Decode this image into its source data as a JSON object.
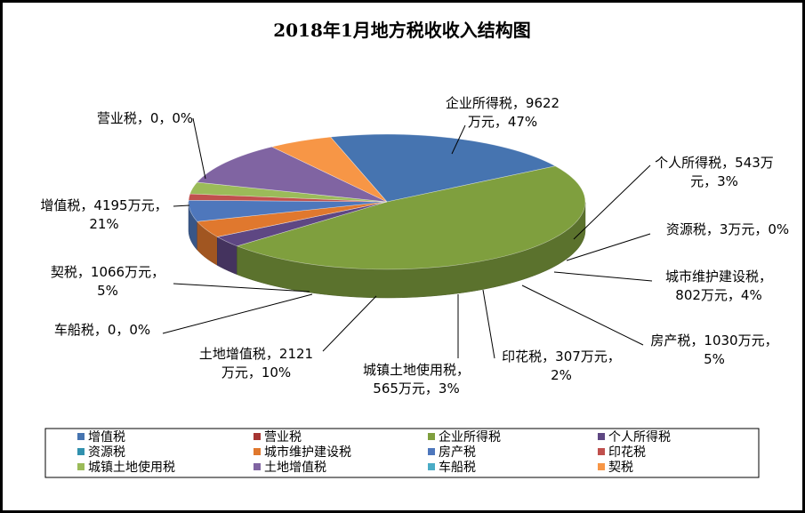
{
  "chart_data": {
    "type": "pie",
    "title": "2018年1月地方税收收入结构图",
    "unit": "万元",
    "slices": [
      {
        "name": "增值税",
        "value": 4195,
        "percent": "21%",
        "color": "#4674B0"
      },
      {
        "name": "营业税",
        "value": 0,
        "percent": "0%",
        "color": "#A63533"
      },
      {
        "name": "企业所得税",
        "value": 9622,
        "percent": "47%",
        "color": "#7F9F3E"
      },
      {
        "name": "个人所得税",
        "value": 543,
        "percent": "3%",
        "color": "#5E4783"
      },
      {
        "name": "资源税",
        "value": 3,
        "percent": "0%",
        "color": "#3191AE"
      },
      {
        "name": "城市维护建设税",
        "value": 802,
        "percent": "4%",
        "color": "#E0782E"
      },
      {
        "name": "房产税",
        "value": 1030,
        "percent": "5%",
        "color": "#4E77BC"
      },
      {
        "name": "印花税",
        "value": 307,
        "percent": "2%",
        "color": "#C0504D"
      },
      {
        "name": "城镇土地使用税",
        "value": 565,
        "percent": "3%",
        "color": "#9BBB59"
      },
      {
        "name": "土地增值税",
        "value": 2121,
        "percent": "10%",
        "color": "#8064A2"
      },
      {
        "name": "车船税",
        "value": 0,
        "percent": "0%",
        "color": "#4BACC6"
      },
      {
        "name": "契税",
        "value": 1066,
        "percent": "5%",
        "color": "#F79646"
      }
    ],
    "data_labels": [
      {
        "slice": "营业税",
        "lines": [
          "营业税，0，0%"
        ]
      },
      {
        "slice": "企业所得税",
        "lines": [
          "企业所得税，9622",
          "万元，47%"
        ]
      },
      {
        "slice": "个人所得税",
        "lines": [
          "个人所得税，543万",
          "元，3%"
        ]
      },
      {
        "slice": "资源税",
        "lines": [
          "资源税，3万元，0%"
        ]
      },
      {
        "slice": "城市维护建设税",
        "lines": [
          "城市维护建设税，",
          "802万元，4%"
        ]
      },
      {
        "slice": "房产税",
        "lines": [
          "房产税，1030万元，",
          "5%"
        ]
      },
      {
        "slice": "印花税",
        "lines": [
          "印花税，307万元，",
          "2%"
        ]
      },
      {
        "slice": "城镇土地使用税",
        "lines": [
          "城镇土地使用税，",
          "565万元，3%"
        ]
      },
      {
        "slice": "土地增值税",
        "lines": [
          "土地增值税，2121",
          "万元，10%"
        ]
      },
      {
        "slice": "车船税",
        "lines": [
          "车船税，0，0%"
        ]
      },
      {
        "slice": "契税",
        "lines": [
          "契税，1066万元，",
          "5%"
        ]
      },
      {
        "slice": "增值税",
        "lines": [
          "增值税，4195万元，",
          "21%"
        ]
      }
    ],
    "legend_position": "bottom",
    "three_d": true
  }
}
